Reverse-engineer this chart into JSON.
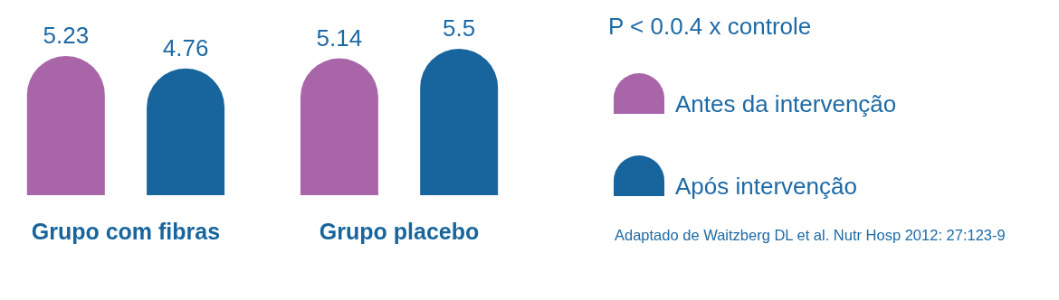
{
  "chart_data": {
    "type": "bar",
    "categories": [
      "Grupo com fibras",
      "Grupo placebo"
    ],
    "series": [
      {
        "name": "Antes da intervenção",
        "color": "#a866a8",
        "values": [
          5.23,
          5.14
        ]
      },
      {
        "name": "Após intervenção",
        "color": "#17659c",
        "values": [
          4.76,
          5.5
        ]
      }
    ],
    "data_labels": true,
    "legend": "right",
    "annotations": [
      "P < 0.0.4 x controle",
      "Adaptado de Waitzberg DL et al. Nutr Hosp 2012: 27:123-9"
    ]
  }
}
